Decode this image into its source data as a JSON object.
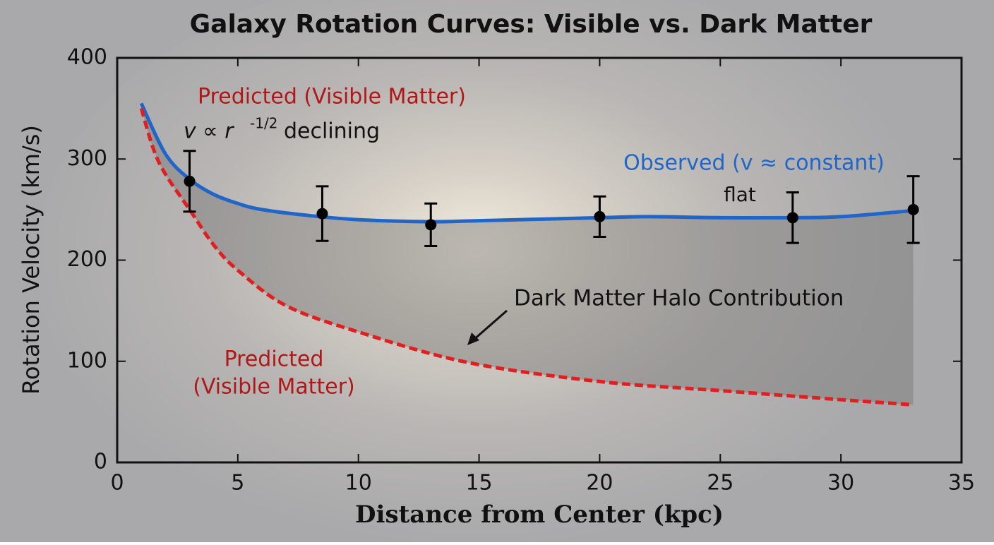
{
  "chart_data": {
    "type": "line",
    "title": "Galaxy Rotation Curves: Visible vs. Dark Matter",
    "x_label": "Distance from Center (kpc)",
    "y_label": "Rotation Velocity (km/s)",
    "xlim": [
      0,
      35
    ],
    "xticks": [
      0,
      5,
      10,
      15,
      20,
      25,
      30,
      35
    ],
    "ylim": [
      0,
      400
    ],
    "yticks": [
      0,
      100,
      200,
      300,
      400
    ],
    "series": [
      {
        "name": "Observed (v ≈ constant)",
        "color": "#1f66c8",
        "style": "solid",
        "x": [
          1,
          2,
          3,
          4,
          5,
          6,
          8,
          10,
          13,
          15,
          20,
          22,
          25,
          28,
          30,
          33
        ],
        "values": [
          355,
          305,
          280,
          265,
          256,
          250,
          244,
          240,
          238,
          239,
          242,
          243,
          242,
          242,
          243,
          249
        ]
      },
      {
        "name": "Predicted (Visible Matter)",
        "color": "#e02020",
        "style": "dashed",
        "x": [
          1,
          1.5,
          2,
          3,
          4,
          5,
          7,
          10,
          14.5,
          20,
          25,
          30,
          33
        ],
        "values": [
          350,
          310,
          285,
          250,
          215,
          190,
          155,
          129,
          99,
          80,
          71,
          62,
          57
        ]
      }
    ],
    "measurements": {
      "color": "#000000",
      "x": [
        3,
        8.5,
        13,
        20,
        28,
        33
      ],
      "values": [
        278,
        246,
        235,
        243,
        242,
        250
      ],
      "errors": [
        30,
        27,
        21,
        20,
        25,
        33
      ]
    },
    "annotations": {
      "formula_v": "v ∝ r",
      "formula_exp": "-1/2",
      "formula_rest": "declining",
      "flat": "flat",
      "halo": "Dark Matter Halo Contribution",
      "predicted_line1": "Predicted",
      "predicted_line2": "(Visible Matter)"
    }
  }
}
